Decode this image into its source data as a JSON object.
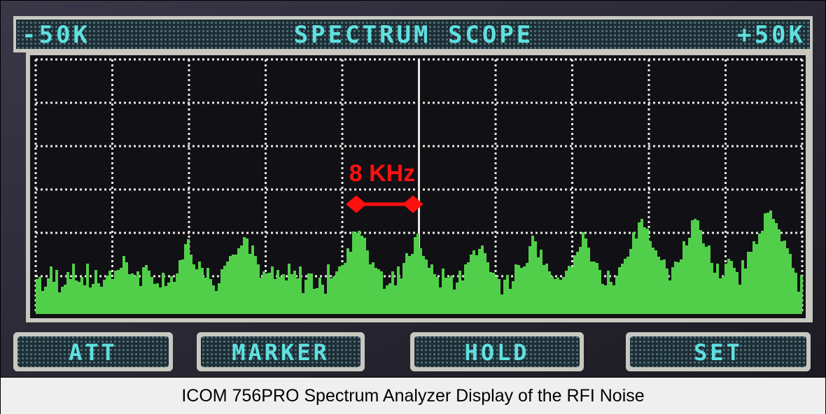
{
  "header": {
    "left": "-50K",
    "title": "SPECTRUM SCOPE",
    "right": "+50K"
  },
  "annotation": "8 KHz",
  "buttons": [
    "ATT",
    "MARKER",
    "HOLD",
    "SET"
  ],
  "caption": "ICOM 756PRO Spectrum Analyzer Display of the RFI Noise"
}
